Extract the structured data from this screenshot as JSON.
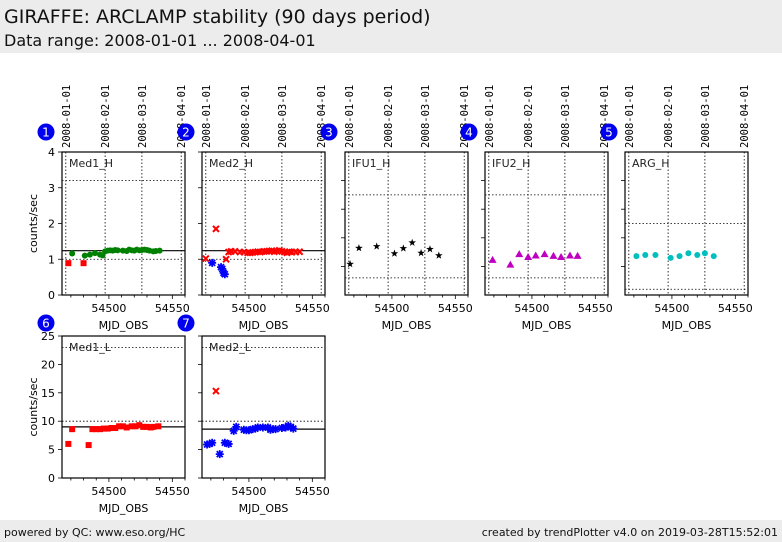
{
  "header": {
    "title": "GIRAFFE: ARCLAMP stability (90 days period)",
    "subtitle": "Data range: 2008-01-01 ... 2008-04-01"
  },
  "footer": {
    "left": "powered by QC: www.eso.org/HC",
    "right": "created by trendPlotter v4.0 on 2019-03-28T15:52:01"
  },
  "colors": {
    "badge": "#0000ee",
    "green": "#008000",
    "red": "#ff0000",
    "blue": "#0000ff",
    "black": "#000000",
    "magenta": "#c000c0",
    "cyan": "#00bfbf"
  },
  "chart_data": [
    {
      "type": "scatter",
      "id": 1,
      "badge": "1",
      "label": "Med1_H",
      "xlabel": "MJD_OBS",
      "ylabel": "counts/sec",
      "xlim": [
        54463,
        54560
      ],
      "ylim": [
        0,
        4
      ],
      "xticks": [
        54500,
        54550
      ],
      "yticks": [
        0,
        1,
        2,
        3,
        4
      ],
      "ytick_labels": true,
      "date_ticks": [
        {
          "label": "2008-01-01",
          "mjd": 54466
        },
        {
          "label": "2008-02-01",
          "mjd": 54497
        },
        {
          "label": "2008-03-01",
          "mjd": 54526
        },
        {
          "label": "2008-04-01",
          "mjd": 54557
        }
      ],
      "ref_line": 1.24,
      "thresholds": [
        1.0,
        3.2
      ],
      "series": [
        {
          "name": "ok",
          "marker": "circle",
          "color": "green",
          "x": [
            54471,
            54481,
            54485,
            54489,
            54493,
            54495,
            54497,
            54499,
            54501,
            54503,
            54505,
            54507,
            54511,
            54514,
            54516,
            54518,
            54520,
            54522,
            54524,
            54526,
            54528,
            54530,
            54532,
            54535,
            54537,
            54540
          ],
          "y": [
            1.16,
            1.1,
            1.13,
            1.17,
            1.13,
            1.11,
            1.22,
            1.24,
            1.25,
            1.24,
            1.26,
            1.25,
            1.24,
            1.23,
            1.27,
            1.25,
            1.24,
            1.27,
            1.25,
            1.26,
            1.27,
            1.26,
            1.24,
            1.22,
            1.23,
            1.24
          ]
        },
        {
          "name": "outlier",
          "marker": "square",
          "color": "red",
          "x": [
            54468,
            54480
          ],
          "y": [
            0.89,
            0.89
          ]
        }
      ]
    },
    {
      "type": "scatter",
      "id": 2,
      "badge": "2",
      "label": "Med2_H",
      "xlabel": "MJD_OBS",
      "ylabel": "",
      "xlim": [
        54463,
        54560
      ],
      "ylim": [
        0,
        4
      ],
      "xticks": [
        54500,
        54550
      ],
      "yticks": [
        0,
        1,
        2,
        3,
        4
      ],
      "ytick_labels": false,
      "date_ticks": [
        {
          "label": "2008-01-01",
          "mjd": 54466
        },
        {
          "label": "2008-02-01",
          "mjd": 54497
        },
        {
          "label": "2008-03-01",
          "mjd": 54526
        },
        {
          "label": "2008-04-01",
          "mjd": 54557
        }
      ],
      "ref_line": 1.24,
      "thresholds": [
        1.0,
        3.2
      ],
      "series": [
        {
          "name": "ok",
          "marker": "x",
          "color": "red",
          "x": [
            54466,
            54474,
            54482,
            54484,
            54486,
            54489,
            54493,
            54496,
            54499,
            54501,
            54503,
            54505,
            54507,
            54509,
            54512,
            54514,
            54516,
            54518,
            54520,
            54522,
            54524,
            54526,
            54528,
            54530,
            54532,
            54534,
            54537,
            54540
          ],
          "y": [
            1.02,
            1.85,
            1.0,
            1.2,
            1.22,
            1.22,
            1.2,
            1.2,
            1.18,
            1.18,
            1.19,
            1.2,
            1.21,
            1.2,
            1.22,
            1.22,
            1.23,
            1.24,
            1.21,
            1.23,
            1.25,
            1.22,
            1.2,
            1.18,
            1.21,
            1.2,
            1.2,
            1.21
          ]
        },
        {
          "name": "outlier",
          "marker": "asterisk",
          "color": "blue",
          "x": [
            54471,
            54478,
            54479,
            54480,
            54481
          ],
          "y": [
            0.9,
            0.78,
            0.73,
            0.62,
            0.58
          ]
        }
      ]
    },
    {
      "type": "scatter",
      "id": 3,
      "badge": "3",
      "label": "IFU1_H",
      "xlabel": "MJD_OBS",
      "ylabel": "",
      "xlim": [
        54463,
        54560
      ],
      "ylim": [
        0,
        5
      ],
      "xticks": [
        54500,
        54550
      ],
      "yticks": [
        1,
        2,
        3,
        4
      ],
      "ytick_labels": false,
      "date_ticks": [
        {
          "label": "2008-01-01",
          "mjd": 54466
        },
        {
          "label": "2008-02-01",
          "mjd": 54497
        },
        {
          "label": "2008-03-01",
          "mjd": 54526
        },
        {
          "label": "2008-04-01",
          "mjd": 54557
        }
      ],
      "ref_line": null,
      "thresholds": [
        0.6,
        3.5
      ],
      "series": [
        {
          "name": "ok",
          "marker": "star",
          "color": "black",
          "x": [
            54467,
            54474,
            54488,
            54502,
            54509,
            54516,
            54523,
            54530,
            54537
          ],
          "y": [
            1.08,
            1.64,
            1.7,
            1.45,
            1.63,
            1.83,
            1.47,
            1.6,
            1.38
          ]
        }
      ]
    },
    {
      "type": "scatter",
      "id": 4,
      "badge": "4",
      "label": "IFU2_H",
      "xlabel": "MJD_OBS",
      "ylabel": "",
      "xlim": [
        54463,
        54560
      ],
      "ylim": [
        0,
        5
      ],
      "xticks": [
        54500,
        54550
      ],
      "yticks": [
        1,
        2,
        3,
        4
      ],
      "ytick_labels": false,
      "date_ticks": [
        {
          "label": "2008-01-01",
          "mjd": 54466
        },
        {
          "label": "2008-02-01",
          "mjd": 54497
        },
        {
          "label": "2008-03-01",
          "mjd": 54526
        },
        {
          "label": "2008-04-01",
          "mjd": 54557
        }
      ],
      "ref_line": null,
      "thresholds": [
        0.6,
        3.5
      ],
      "series": [
        {
          "name": "ok",
          "marker": "triangle",
          "color": "magenta",
          "x": [
            54469,
            54483,
            54490,
            54497,
            54503,
            54510,
            54517,
            54523,
            54530,
            54536
          ],
          "y": [
            1.23,
            1.06,
            1.43,
            1.33,
            1.38,
            1.43,
            1.37,
            1.33,
            1.38,
            1.37
          ]
        }
      ]
    },
    {
      "type": "scatter",
      "id": 5,
      "badge": "5",
      "label": "ARG_H",
      "xlabel": "MJD_OBS",
      "ylabel": "",
      "xlim": [
        54463,
        54560
      ],
      "ylim": [
        0,
        5
      ],
      "xticks": [
        54500,
        54550
      ],
      "yticks": [
        1,
        2,
        3,
        4
      ],
      "ytick_labels": false,
      "date_ticks": [
        {
          "label": "2008-01-01",
          "mjd": 54466
        },
        {
          "label": "2008-02-01",
          "mjd": 54497
        },
        {
          "label": "2008-03-01",
          "mjd": 54526
        },
        {
          "label": "2008-04-01",
          "mjd": 54557
        }
      ],
      "ref_line": null,
      "thresholds": [
        0.2,
        2.5
      ],
      "series": [
        {
          "name": "ok",
          "marker": "circle",
          "color": "cyan",
          "x": [
            54472,
            54479,
            54487,
            54499,
            54506,
            54513,
            54520,
            54526,
            54533
          ],
          "y": [
            1.36,
            1.4,
            1.4,
            1.3,
            1.36,
            1.46,
            1.4,
            1.46,
            1.36
          ]
        }
      ]
    },
    {
      "type": "scatter",
      "id": 6,
      "badge": "6",
      "label": "Med1_L",
      "xlabel": "MJD_OBS",
      "ylabel": "counts/sec",
      "xlim": [
        54463,
        54560
      ],
      "ylim": [
        0,
        25
      ],
      "xticks": [
        54500,
        54550
      ],
      "yticks": [
        0,
        5,
        10,
        15,
        20,
        25
      ],
      "ytick_labels": true,
      "date_ticks": [],
      "ref_line": 9.0,
      "thresholds": [
        10.0,
        23.0
      ],
      "series": [
        {
          "name": "ok",
          "marker": "square",
          "color": "red",
          "x": [
            54471,
            54487,
            54490,
            54493,
            54496,
            54499,
            54502,
            54505,
            54508,
            54511,
            54514,
            54518,
            54521,
            54524,
            54527,
            54530,
            54533,
            54535,
            54539
          ],
          "y": [
            8.6,
            8.6,
            8.6,
            8.6,
            8.7,
            8.7,
            8.8,
            8.8,
            9.1,
            9.1,
            8.9,
            9.1,
            9.1,
            9.3,
            9.0,
            9.0,
            8.9,
            9.0,
            9.1
          ]
        },
        {
          "name": "outlier",
          "marker": "square",
          "color": "red",
          "x": [
            54468,
            54484
          ],
          "y": [
            6.0,
            5.8
          ]
        }
      ]
    },
    {
      "type": "scatter",
      "id": 7,
      "badge": "7",
      "label": "Med2_L",
      "xlabel": "MJD_OBS",
      "ylabel": "",
      "xlim": [
        54463,
        54560
      ],
      "ylim": [
        0,
        25
      ],
      "xticks": [
        54500,
        54550
      ],
      "yticks": [
        0,
        5,
        10,
        15,
        20,
        25
      ],
      "ytick_labels": false,
      "date_ticks": [],
      "ref_line": 8.6,
      "thresholds": [
        10.0,
        23.0
      ],
      "series": [
        {
          "name": "ok",
          "marker": "asterisk",
          "color": "blue",
          "x": [
            54467,
            54469,
            54471,
            54477,
            54481,
            54484,
            54488,
            54490,
            54496,
            54498,
            54500,
            54503,
            54505,
            54507,
            54511,
            54515,
            54517,
            54519,
            54521,
            54526,
            54529,
            54531,
            54533,
            54535
          ],
          "y": [
            5.9,
            6.0,
            6.2,
            4.2,
            6.2,
            6.0,
            8.3,
            9.0,
            8.5,
            8.4,
            8.4,
            8.6,
            8.7,
            8.9,
            8.9,
            8.9,
            8.5,
            8.6,
            8.6,
            8.8,
            8.9,
            9.2,
            9.0,
            8.7
          ]
        },
        {
          "name": "outlier",
          "marker": "x",
          "color": "red",
          "x": [
            54474
          ],
          "y": [
            15.3
          ]
        }
      ]
    }
  ]
}
